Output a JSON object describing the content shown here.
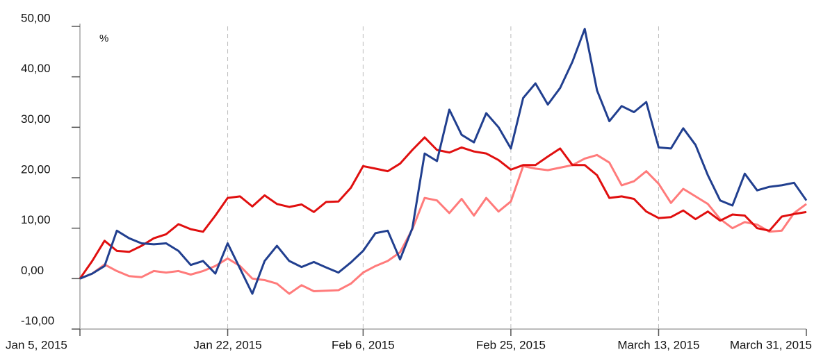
{
  "chart_data": {
    "type": "line",
    "annotation": "%",
    "categories": [
      "Jan 5, 2015",
      null,
      null,
      null,
      null,
      null,
      null,
      null,
      null,
      null,
      null,
      null,
      "Jan 22, 2015",
      null,
      null,
      null,
      null,
      null,
      null,
      null,
      null,
      null,
      null,
      "Feb 6, 2015",
      null,
      null,
      null,
      null,
      null,
      null,
      null,
      null,
      null,
      null,
      null,
      "Feb 25, 2015",
      null,
      null,
      null,
      null,
      null,
      null,
      null,
      null,
      null,
      null,
      null,
      "March 13, 2015",
      null,
      null,
      null,
      null,
      null,
      null,
      null,
      null,
      null,
      null,
      null,
      "March 31, 2015"
    ],
    "series": [
      {
        "color": "#ff7b7b",
        "values": [
          0,
          1,
          2.8,
          1.5,
          0.5,
          0.3,
          1.5,
          1.2,
          1.5,
          0.8,
          1.5,
          2.5,
          4,
          2.5,
          0,
          -0.3,
          -1,
          -3,
          -1.3,
          -2.5,
          -2.4,
          -2.3,
          -1,
          1.2,
          2.5,
          3.5,
          5.2,
          9.8,
          16,
          15.5,
          13,
          15.8,
          12.5,
          16,
          13.3,
          15.3,
          22.3,
          21.8,
          21.5,
          22,
          22.5,
          23.8,
          24.5,
          23,
          18.5,
          19.3,
          21.3,
          18.8,
          15,
          17.8,
          16.3,
          14.8,
          11.8,
          10,
          11.2,
          10.7,
          9.3,
          9.5,
          13,
          14.8
        ]
      },
      {
        "color": "#e00f0f",
        "values": [
          0,
          3.5,
          7.5,
          5.5,
          5.3,
          6.5,
          8,
          8.8,
          10.8,
          9.8,
          9.3,
          12.5,
          16,
          16.3,
          14.3,
          16.5,
          14.8,
          14.2,
          14.7,
          13.2,
          15.2,
          15.3,
          18,
          22.3,
          21.8,
          21.3,
          22.8,
          25.5,
          28,
          25.5,
          25,
          26,
          25.2,
          24.8,
          23.5,
          21.6,
          22.5,
          22.5,
          24.2,
          25.8,
          22.5,
          22.5,
          20.5,
          16,
          16.3,
          15.8,
          13.3,
          12,
          12.2,
          13.5,
          11.8,
          13.3,
          11.5,
          12.7,
          12.5,
          10,
          9.5,
          12.3,
          12.8,
          13.2
        ]
      },
      {
        "color": "#213f8f",
        "values": [
          0,
          1,
          2.5,
          9.5,
          8,
          7,
          6.8,
          7,
          5.5,
          2.7,
          3.5,
          1,
          7,
          2,
          -3,
          3.5,
          6.5,
          3.5,
          2.3,
          3.3,
          2.2,
          1.2,
          3.2,
          5.5,
          9,
          9.5,
          3.8,
          10,
          24.8,
          23.3,
          33.5,
          28.5,
          27,
          32.8,
          30,
          25.8,
          35.8,
          38.7,
          34.5,
          37.8,
          43,
          49.5,
          37.3,
          31.2,
          34.2,
          33,
          35,
          26,
          25.8,
          29.8,
          26.5,
          20.5,
          15.5,
          14.5,
          20.8,
          17.5,
          18.2,
          18.5,
          19,
          15.5
        ]
      }
    ],
    "ylim": [
      -10,
      50
    ],
    "yticks": [
      {
        "value": -10,
        "label": "-10,00"
      },
      {
        "value": 0,
        "label": "0,00"
      },
      {
        "value": 10,
        "label": "10,00"
      },
      {
        "value": 20,
        "label": "20,00"
      },
      {
        "value": 30,
        "label": "30,00"
      },
      {
        "value": 40,
        "label": "40,00"
      },
      {
        "value": 50,
        "label": "50,00"
      }
    ],
    "grid": true
  }
}
